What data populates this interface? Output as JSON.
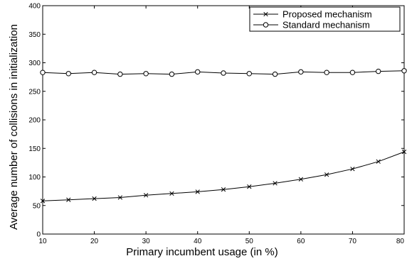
{
  "chart_data": {
    "type": "line",
    "title": "",
    "xlabel": "Primary incumbent usage (in %)",
    "ylabel": "Average number of collisions in initialization",
    "xlim": [
      10,
      80
    ],
    "ylim": [
      0,
      400
    ],
    "xticks": [
      10,
      20,
      30,
      40,
      50,
      60,
      70,
      80
    ],
    "xtick_labels": [
      "10",
      "20",
      "30",
      "40",
      "50",
      "60",
      "70",
      "80"
    ],
    "yticks": [
      0,
      50,
      100,
      150,
      200,
      250,
      300,
      350,
      400
    ],
    "ytick_labels": [
      "0",
      "50",
      "100",
      "150",
      "200",
      "250",
      "300",
      "350",
      "400"
    ],
    "grid": false,
    "legend_position": "top-right",
    "x": [
      10,
      15,
      20,
      25,
      30,
      35,
      40,
      45,
      50,
      55,
      60,
      65,
      70,
      75,
      80
    ],
    "series": [
      {
        "name": "Proposed mechanism",
        "marker": "x",
        "values": [
          58,
          60,
          62,
          64,
          68,
          71,
          74,
          78,
          83,
          89,
          96,
          104,
          114,
          127,
          144
        ]
      },
      {
        "name": "Standard mechanism",
        "marker": "o",
        "values": [
          283,
          281,
          283,
          280,
          281,
          280,
          284,
          282,
          281,
          280,
          284,
          283,
          283,
          285,
          286
        ]
      }
    ]
  }
}
